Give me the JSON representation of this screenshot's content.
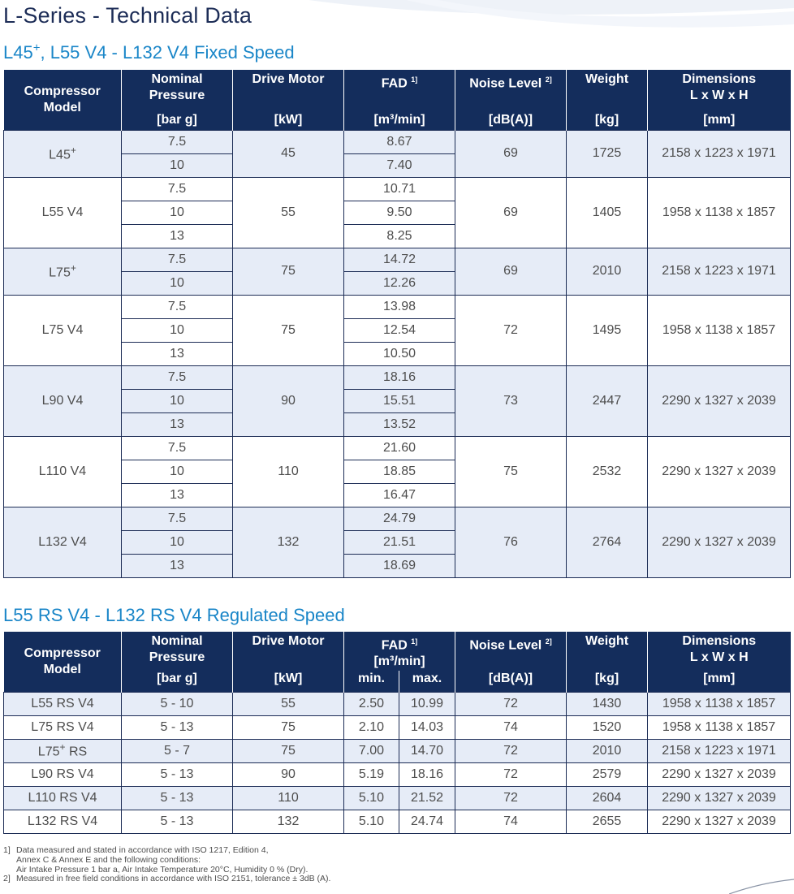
{
  "page_title": "L-Series - Technical Data",
  "fixed": {
    "title_pre": "L45",
    "title_sup": "+",
    "title_post": ", L55 V4 - L132 V4 Fixed Speed",
    "headers": {
      "model": "Compressor Model",
      "pressure": "Nominal Pressure",
      "pressure_unit": "[bar g]",
      "motor": "Drive Motor",
      "motor_unit": "[kW]",
      "fad": "FAD",
      "fad_note": "1]",
      "fad_unit": "[m³/min]",
      "noise": "Noise Level",
      "noise_note": "2]",
      "noise_unit": "[dB(A)]",
      "weight": "Weight",
      "weight_unit": "[kg]",
      "dims": "Dimensions L x W x H",
      "dims_unit": "[mm]"
    },
    "groups": [
      {
        "model": "L45",
        "sup": "+",
        "motor": "45",
        "noise": "69",
        "weight": "1725",
        "dims": "2158 x 1223 x 1971",
        "rows": [
          {
            "pressure": "7.5",
            "fad": "8.67"
          },
          {
            "pressure": "10",
            "fad": "7.40"
          }
        ]
      },
      {
        "model": "L55 V4",
        "sup": "",
        "motor": "55",
        "noise": "69",
        "weight": "1405",
        "dims": "1958 x 1138 x 1857",
        "rows": [
          {
            "pressure": "7.5",
            "fad": "10.71"
          },
          {
            "pressure": "10",
            "fad": "9.50"
          },
          {
            "pressure": "13",
            "fad": "8.25"
          }
        ]
      },
      {
        "model": "L75",
        "sup": "+",
        "motor": "75",
        "noise": "69",
        "weight": "2010",
        "dims": "2158 x 1223 x 1971",
        "rows": [
          {
            "pressure": "7.5",
            "fad": "14.72"
          },
          {
            "pressure": "10",
            "fad": "12.26"
          }
        ]
      },
      {
        "model": "L75 V4",
        "sup": "",
        "motor": "75",
        "noise": "72",
        "weight": "1495",
        "dims": "1958 x 1138 x 1857",
        "rows": [
          {
            "pressure": "7.5",
            "fad": "13.98"
          },
          {
            "pressure": "10",
            "fad": "12.54"
          },
          {
            "pressure": "13",
            "fad": "10.50"
          }
        ]
      },
      {
        "model": "L90 V4",
        "sup": "",
        "motor": "90",
        "noise": "73",
        "weight": "2447",
        "dims": "2290 x 1327 x 2039",
        "rows": [
          {
            "pressure": "7.5",
            "fad": "18.16"
          },
          {
            "pressure": "10",
            "fad": "15.51"
          },
          {
            "pressure": "13",
            "fad": "13.52"
          }
        ]
      },
      {
        "model": "L110 V4",
        "sup": "",
        "motor": "110",
        "noise": "75",
        "weight": "2532",
        "dims": "2290 x 1327 x 2039",
        "rows": [
          {
            "pressure": "7.5",
            "fad": "21.60"
          },
          {
            "pressure": "10",
            "fad": "18.85"
          },
          {
            "pressure": "13",
            "fad": "16.47"
          }
        ]
      },
      {
        "model": "L132 V4",
        "sup": "",
        "motor": "132",
        "noise": "76",
        "weight": "2764",
        "dims": "2290 x 1327 x 2039",
        "rows": [
          {
            "pressure": "7.5",
            "fad": "24.79"
          },
          {
            "pressure": "10",
            "fad": "21.51"
          },
          {
            "pressure": "13",
            "fad": "18.69"
          }
        ]
      }
    ]
  },
  "regulated": {
    "title": "L55 RS V4 - L132 RS V4 Regulated Speed",
    "headers": {
      "model": "Compressor Model",
      "pressure": "Nominal Pressure",
      "pressure_unit": "[bar g]",
      "motor": "Drive Motor",
      "motor_unit": "[kW]",
      "fad": "FAD",
      "fad_note": "1]",
      "fad_unit": "[m³/min]",
      "fad_min": "min.",
      "fad_max": "max.",
      "noise": "Noise Level",
      "noise_note": "2]",
      "noise_unit": "[dB(A)]",
      "weight": "Weight",
      "weight_unit": "[kg]",
      "dims": "Dimensions L x W x H",
      "dims_unit": "[mm]"
    },
    "rows": [
      {
        "model": "L55 RS V4",
        "sup": "",
        "model_post": "",
        "pressure": "5 - 10",
        "motor": "55",
        "min": "2.50",
        "max": "10.99",
        "noise": "72",
        "weight": "1430",
        "dims": "1958 x 1138 x 1857"
      },
      {
        "model": "L75 RS V4",
        "sup": "",
        "model_post": "",
        "pressure": "5 - 13",
        "motor": "75",
        "min": "2.10",
        "max": "14.03",
        "noise": "74",
        "weight": "1520",
        "dims": "1958 x 1138 x 1857"
      },
      {
        "model": "L75",
        "sup": "+",
        "model_post": " RS",
        "pressure": "5 - 7",
        "motor": "75",
        "min": "7.00",
        "max": "14.70",
        "noise": "72",
        "weight": "2010",
        "dims": "2158 x 1223 x 1971"
      },
      {
        "model": "L90 RS V4",
        "sup": "",
        "model_post": "",
        "pressure": "5 - 13",
        "motor": "90",
        "min": "5.19",
        "max": "18.16",
        "noise": "72",
        "weight": "2579",
        "dims": "2290 x 1327 x 2039"
      },
      {
        "model": "L110 RS V4",
        "sup": "",
        "model_post": "",
        "pressure": "5 - 13",
        "motor": "110",
        "min": "5.10",
        "max": "21.52",
        "noise": "72",
        "weight": "2604",
        "dims": "2290 x 1327 x 2039"
      },
      {
        "model": "L132 RS V4",
        "sup": "",
        "model_post": "",
        "pressure": "5 - 13",
        "motor": "132",
        "min": "5.10",
        "max": "24.74",
        "noise": "74",
        "weight": "2655",
        "dims": "2290 x 1327 x 2039"
      }
    ]
  },
  "footnotes": [
    {
      "num": "1]",
      "text": "Data measured and stated in accordance with ISO 1217, Edition 4,\nAnnex C & Annex E and the following conditions:\nAir Intake Pressure 1 bar a, Air Intake Temperature 20°C, Humidity 0 % (Dry)."
    },
    {
      "num": "2]",
      "text": "Measured in free field conditions in accordance with ISO 2151, tolerance ± 3dB (A)."
    }
  ]
}
